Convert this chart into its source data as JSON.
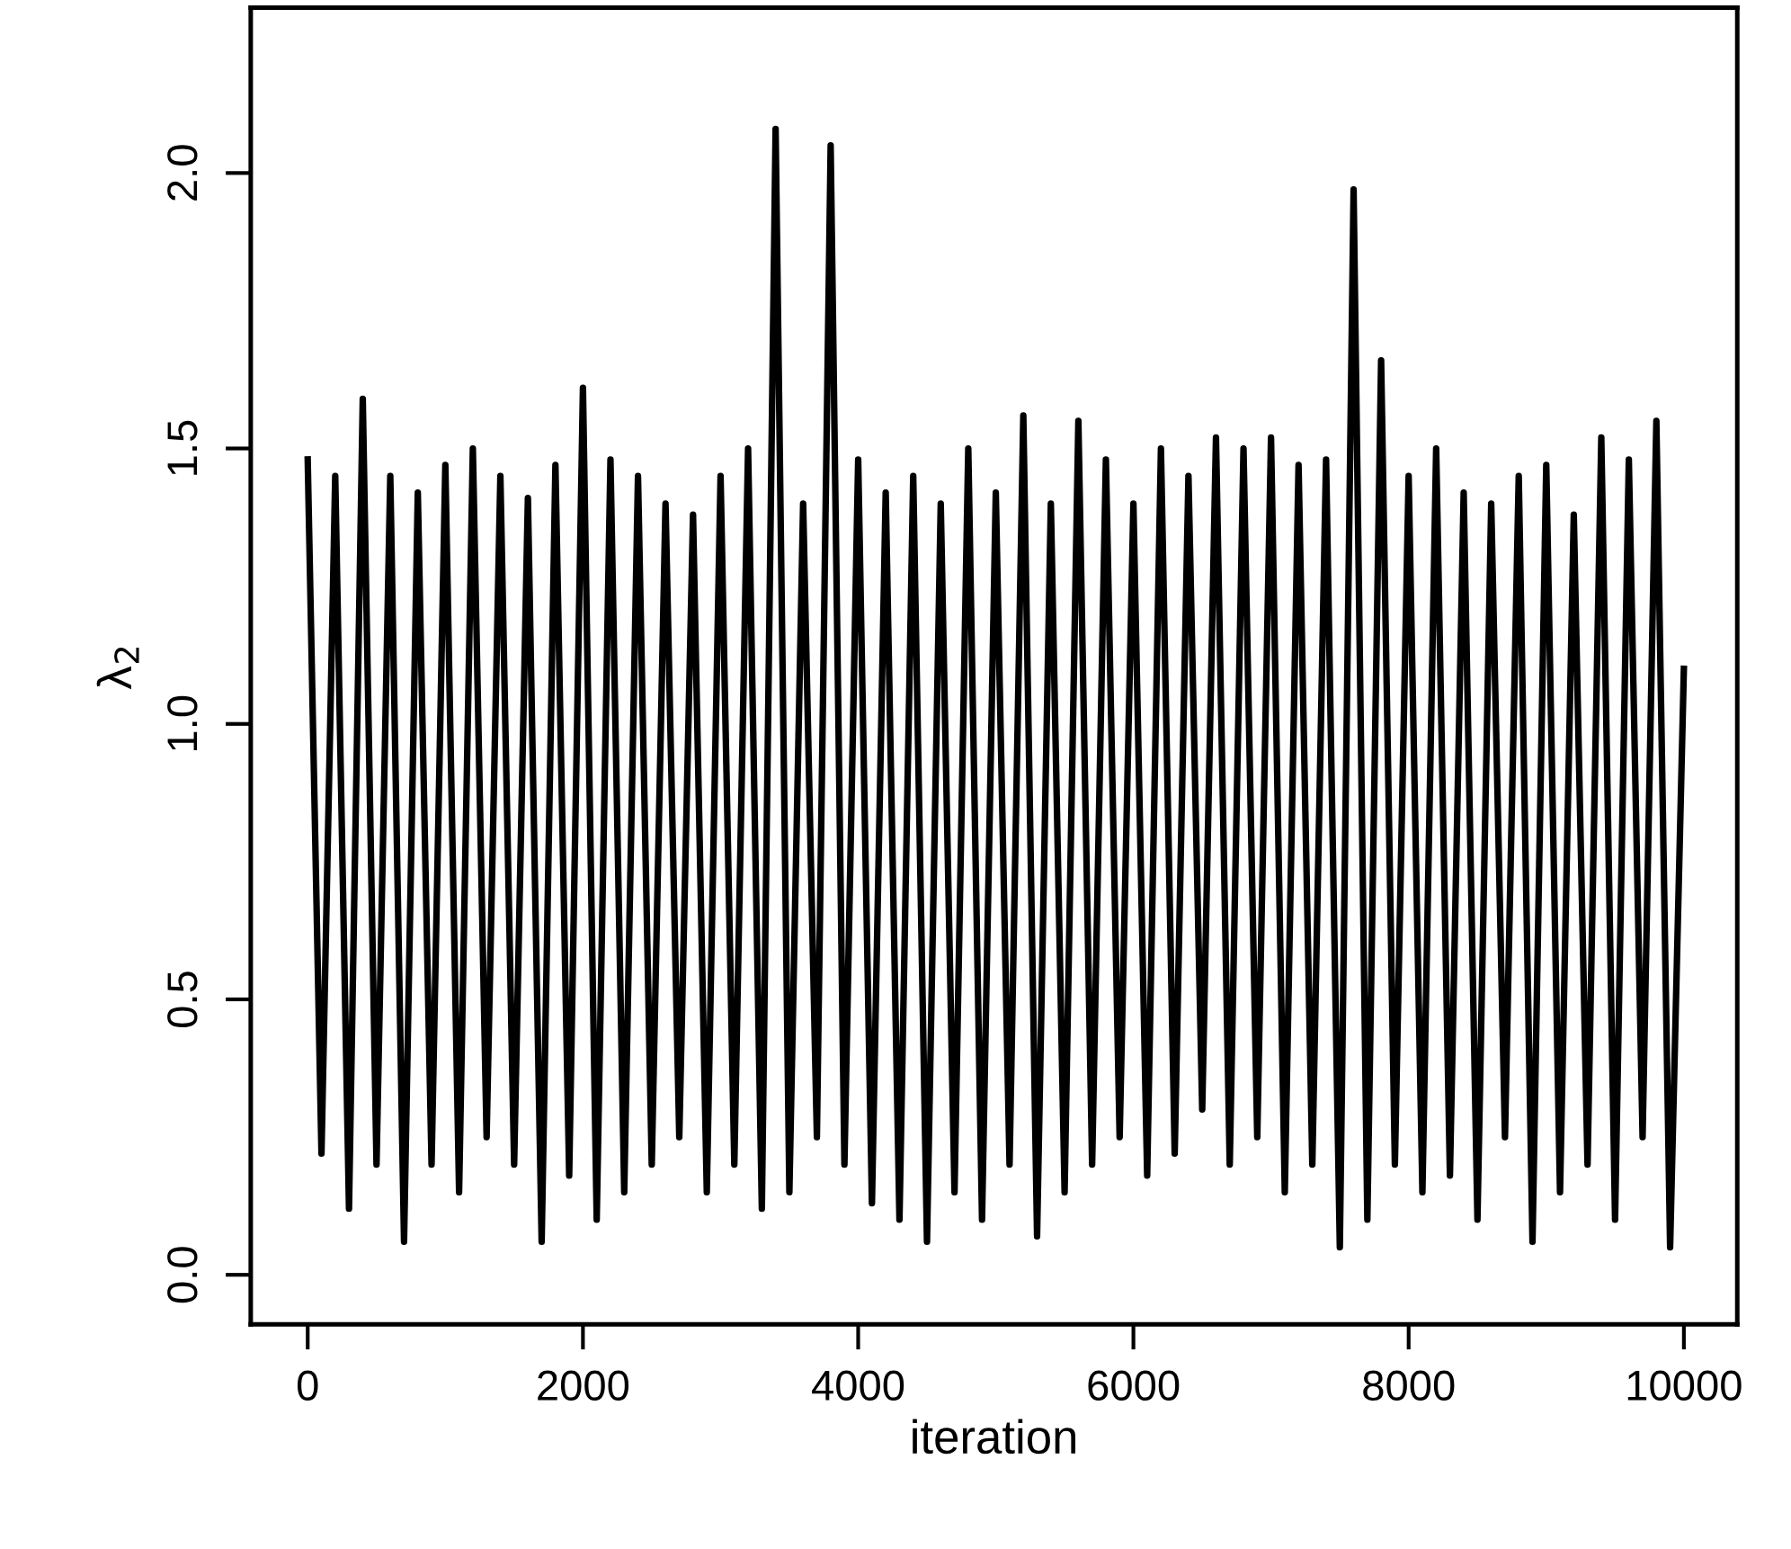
{
  "chart_data": {
    "type": "line",
    "xlabel": "iteration",
    "ylabel": "λ$_{2}$",
    "xlim": [
      -414,
      10388
    ],
    "ylim": [
      -0.09,
      2.3
    ],
    "xticks": [
      0,
      2000,
      4000,
      6000,
      8000,
      10000
    ],
    "yticks": [
      {
        "value": 0,
        "label": "0.0"
      },
      0.5,
      {
        "value": 1,
        "label": "1.0"
      },
      1.5,
      {
        "value": 2,
        "label": "2.0"
      }
    ],
    "grid": false,
    "legend": false,
    "marker": "none",
    "line_style": "solid",
    "x": [
      0,
      100,
      200,
      300,
      400,
      500,
      600,
      700,
      800,
      900,
      1000,
      1100,
      1200,
      1300,
      1400,
      1500,
      1600,
      1700,
      1800,
      1900,
      2000,
      2100,
      2200,
      2300,
      2400,
      2500,
      2600,
      2700,
      2800,
      2900,
      3000,
      3100,
      3200,
      3300,
      3400,
      3500,
      3600,
      3700,
      3800,
      3900,
      4000,
      4100,
      4200,
      4300,
      4400,
      4500,
      4600,
      4700,
      4800,
      4900,
      5000,
      5100,
      5200,
      5300,
      5400,
      5500,
      5600,
      5700,
      5800,
      5900,
      6000,
      6100,
      6200,
      6300,
      6400,
      6500,
      6600,
      6700,
      6800,
      6900,
      7000,
      7100,
      7200,
      7300,
      7400,
      7500,
      7600,
      7700,
      7800,
      7900,
      8000,
      8100,
      8200,
      8300,
      8400,
      8500,
      8600,
      8700,
      8800,
      8900,
      9000,
      9100,
      9200,
      9300,
      9400,
      9500,
      9600,
      9700,
      9800,
      9900,
      10000
    ],
    "series": [
      {
        "color": "#000000",
        "values": [
          1.48,
          0.22,
          1.45,
          0.12,
          1.59,
          0.2,
          1.45,
          0.06,
          1.42,
          0.2,
          1.47,
          0.15,
          1.5,
          0.25,
          1.45,
          0.2,
          1.41,
          0.06,
          1.47,
          0.18,
          1.61,
          0.1,
          1.48,
          0.15,
          1.45,
          0.2,
          1.4,
          0.25,
          1.38,
          0.15,
          1.45,
          0.2,
          1.5,
          0.12,
          2.08,
          0.15,
          1.4,
          0.25,
          2.05,
          0.2,
          1.48,
          0.13,
          1.42,
          0.1,
          1.45,
          0.06,
          1.4,
          0.15,
          1.5,
          0.1,
          1.42,
          0.2,
          1.56,
          0.07,
          1.4,
          0.15,
          1.55,
          0.2,
          1.48,
          0.25,
          1.4,
          0.18,
          1.5,
          0.22,
          1.45,
          0.3,
          1.52,
          0.2,
          1.5,
          0.25,
          1.52,
          0.15,
          1.47,
          0.2,
          1.48,
          0.05,
          1.97,
          0.1,
          1.66,
          0.2,
          1.45,
          0.15,
          1.5,
          0.18,
          1.42,
          0.1,
          1.4,
          0.25,
          1.45,
          0.06,
          1.47,
          0.15,
          1.38,
          0.2,
          1.52,
          0.1,
          1.48,
          0.25,
          1.55,
          0.05,
          1.1
        ]
      }
    ]
  }
}
